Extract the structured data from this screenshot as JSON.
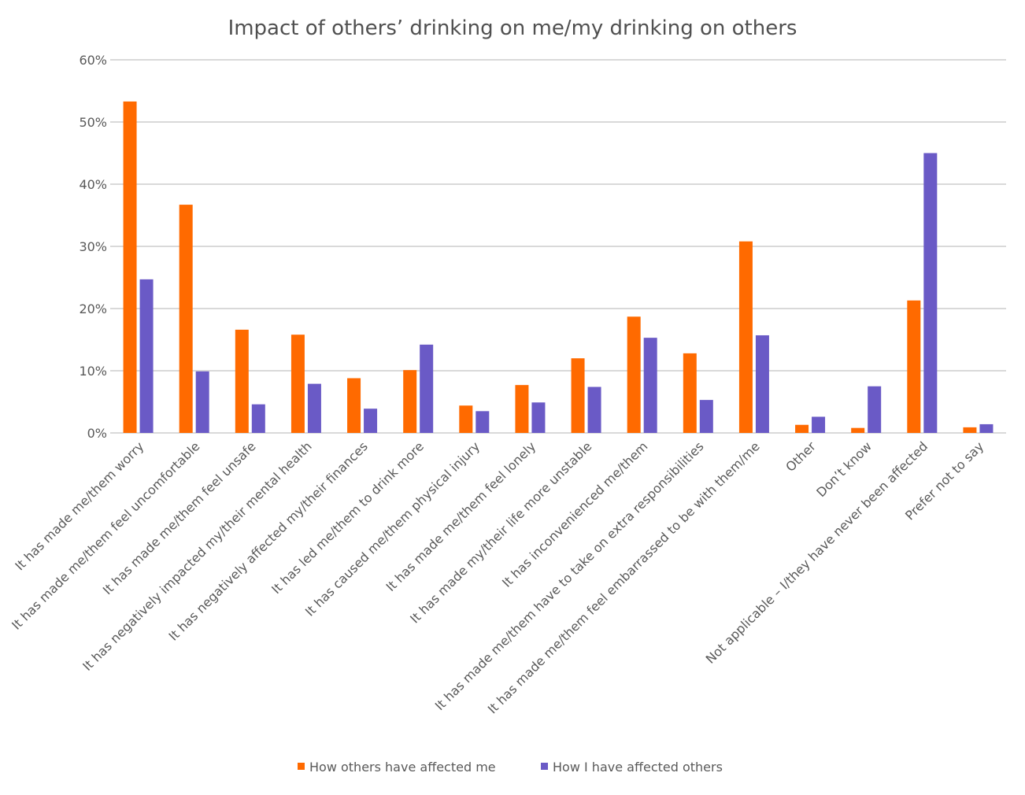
{
  "chart_data": {
    "type": "bar",
    "title": "Impact of others’ drinking on me/my drinking on others",
    "xlabel": "",
    "ylabel": "",
    "ylim": [
      0,
      60
    ],
    "yticks": [
      "0%",
      "10%",
      "20%",
      "30%",
      "40%",
      "50%",
      "60%"
    ],
    "grid": true,
    "legend_position": "bottom",
    "categories": [
      "It has made me/them worry",
      "It has made me/them feel uncomfortable",
      "It has made me/them feel unsafe",
      "It has negatively impacted my/their mental health",
      "It has negatively affected my/their finances",
      "It has led me/them to drink more",
      "It has caused me/them physical injury",
      "It has made me/them feel lonely",
      "It has made my/their life more unstable",
      "It has inconvenienced me/them",
      "It has made me/them have to take on extra responsibilities",
      "It has made me/them feel embarrassed to be with them/me",
      "Other",
      "Don’t know",
      "Not applicable – I/they have never been affected",
      "Prefer not to say"
    ],
    "series": [
      {
        "name": "How others have affected me",
        "color": "#FF6A00",
        "values": [
          53.3,
          36.7,
          16.6,
          15.8,
          8.8,
          10.1,
          4.4,
          7.7,
          12.0,
          18.7,
          12.8,
          30.8,
          1.3,
          0.8,
          21.3,
          0.9
        ]
      },
      {
        "name": "How I have affected others",
        "color": "#6A5AC6",
        "values": [
          24.7,
          9.9,
          4.6,
          7.9,
          3.9,
          14.2,
          3.5,
          4.9,
          7.4,
          15.3,
          5.3,
          15.7,
          2.6,
          7.5,
          45.0,
          1.4
        ]
      }
    ]
  }
}
